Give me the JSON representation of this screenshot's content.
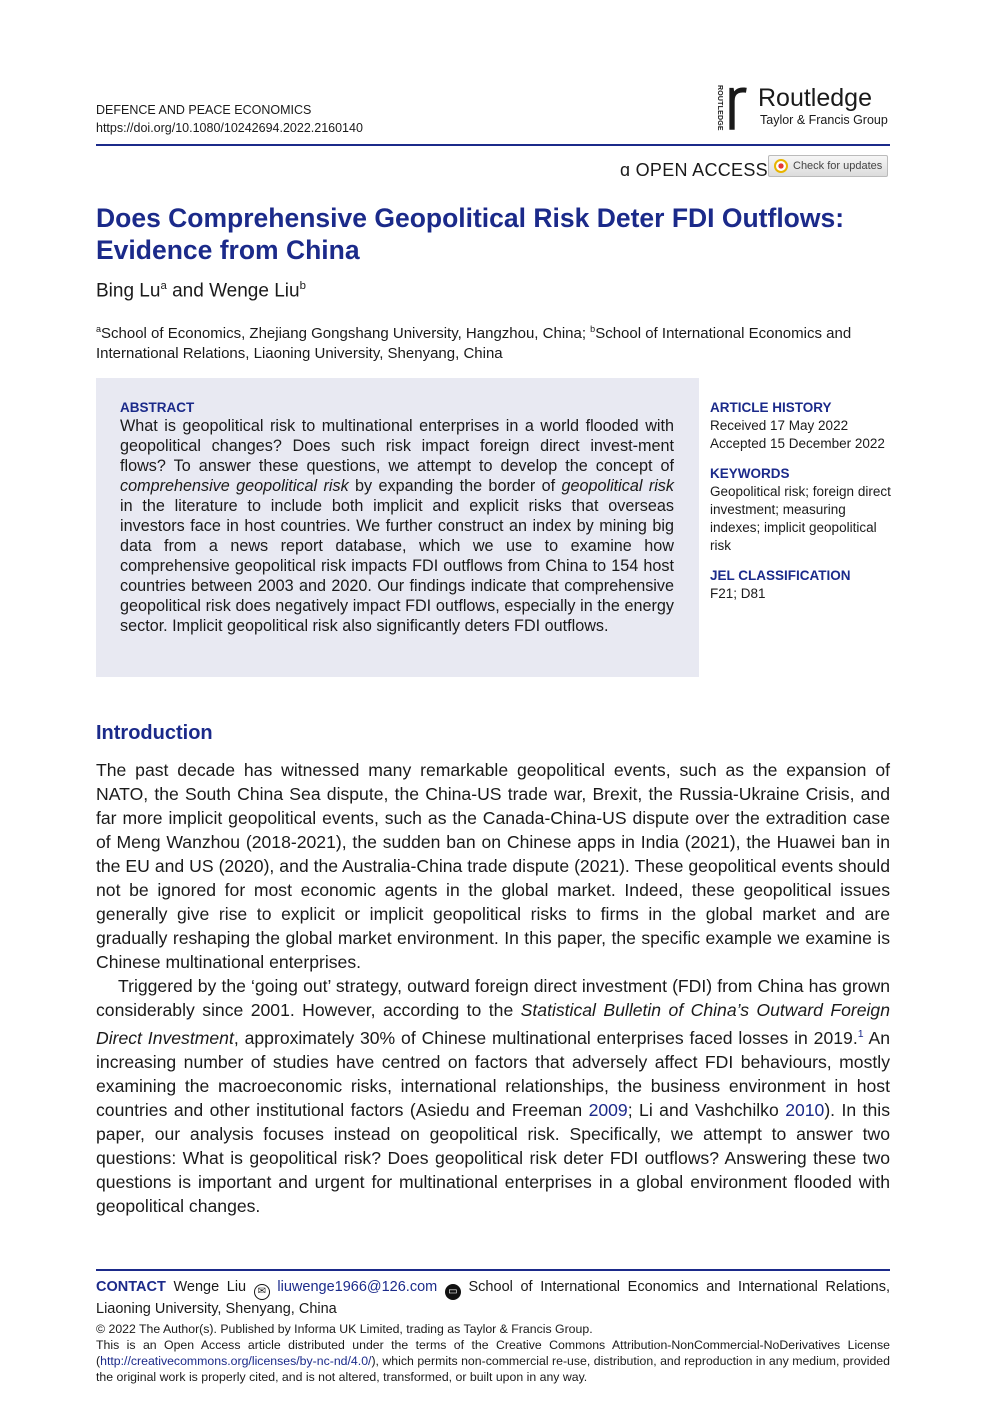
{
  "header": {
    "journal": "DEFENCE AND PEACE ECONOMICS",
    "doi": "https://doi.org/10.1080/10242694.2022.2160140",
    "publisher_logo_vertical": "ROUTLEDGE",
    "publisher_name": "Routledge",
    "publisher_group": "Taylor & Francis Group",
    "open_access": "OPEN ACCESS",
    "check_updates": "Check for updates"
  },
  "colors": {
    "accent": "#1b2a8a",
    "abstract_bg": "#e8e9f2"
  },
  "article": {
    "title": "Does Comprehensive Geopolitical Risk Deter FDI Outflows: Evidence from China",
    "author1": "Bing Lu",
    "author1_sup": "a",
    "and": " and ",
    "author2": "Wenge Liu",
    "author2_sup": "b",
    "affil_a_sup": "a",
    "affil_a": "School of Economics, Zhejiang Gongshang University, Hangzhou, China; ",
    "affil_b_sup": "b",
    "affil_b": "School of International Economics and International Relations, Liaoning University, Shenyang, China"
  },
  "abstract": {
    "heading": "ABSTRACT",
    "segments": [
      {
        "t": "What is geopolitical risk to multinational enterprises in a world flooded with geopolitical changes? Does such risk impact foreign direct invest-ment flows? To answer these questions, we attempt to develop the concept of "
      },
      {
        "t": "comprehensive geopolitical risk",
        "i": true
      },
      {
        "t": " by expanding the border of "
      },
      {
        "t": "geopolitical risk",
        "i": true
      },
      {
        "t": " in the literature to include both implicit and explicit risks that overseas investors face in host countries. We further construct an index by mining big data from a news report database, which we use to examine how comprehensive geopolitical risk impacts FDI outflows from China to 154 host countries between 2003 and 2020. Our findings indicate that comprehensive geopolitical risk does negatively impact FDI outflows, especially in the energy sector. Implicit geopolitical risk also significantly deters FDI outflows."
      }
    ]
  },
  "sidebar": {
    "history_heading": "ARTICLE HISTORY",
    "received": "Received 17 May 2022",
    "accepted": "Accepted 15 December 2022",
    "keywords_heading": "KEYWORDS",
    "keywords": "Geopolitical risk; foreign direct investment; measuring indexes; implicit geopolitical risk",
    "jel_heading": "JEL CLASSIFICATION",
    "jel": "F21; D81"
  },
  "introduction": {
    "heading": "Introduction",
    "paragraphs": [
      [
        {
          "t": "The past decade has witnessed many remarkable geopolitical events, such as the expansion of NATO, the South China Sea dispute, the China-US trade war, Brexit, the Russia-Ukraine Crisis, and far more implicit geopolitical events, such as the Canada-China-US dispute over the extradition case of Meng Wanzhou (2018-2021), the sudden ban on Chinese apps in India (2021), the Huawei ban in the EU and US (2020), and the Australia-China trade dispute (2021). These geopolitical events should not be ignored for most economic agents in the global market. Indeed, these geopolitical issues generally give rise to explicit or implicit geopolitical risks to firms in the global market and are gradually reshaping the global market environment. In this paper, the specific example we examine is Chinese multinational enterprises."
        }
      ],
      [
        {
          "t": "Triggered by the ‘going out’ strategy, outward foreign direct investment (FDI) from China has grown considerably since 2001. However, according to the "
        },
        {
          "t": "Statistical Bulletin of China’s Outward Foreign Direct Investment",
          "i": true
        },
        {
          "t": ", approximately 30% of Chinese multinational enterprises faced losses in 2019."
        },
        {
          "t": "1",
          "sup": true,
          "link": true
        },
        {
          "t": " An increasing number of studies have centred on factors that adversely affect FDI behaviours, mostly examining the macroeconomic risks, international relationships, the business environment in host countries and other institutional factors (Asiedu and Freeman "
        },
        {
          "t": "2009",
          "link": true
        },
        {
          "t": "; Li and Vashchilko "
        },
        {
          "t": "2010",
          "link": true
        },
        {
          "t": "). In this paper, our analysis focuses instead on geopolitical risk. Specifically, we attempt to answer two questions: What is geopolitical risk? Does geopolitical risk deter FDI outflows? Answering these two questions is important and urgent for multinational enterprises in a global environment flooded with geopolitical changes."
        }
      ]
    ]
  },
  "contact": {
    "label": "CONTACT",
    "name": " Wenge Liu ",
    "email": "liuwenge1966@126.com",
    "address": " School of International Economics and International Relations, Liaoning University, Shenyang, China"
  },
  "footer": {
    "copyright": "© 2022 The Author(s). Published by Informa UK Limited, trading as Taylor & Francis Group.",
    "license_pre": "This is an Open Access article distributed under the terms of the Creative Commons Attribution-NonCommercial-NoDerivatives License (",
    "license_url": "http://creativecommons.org/licenses/by-nc-nd/4.0/",
    "license_post": "), which permits non-commercial re-use, distribution, and reproduction in any medium, provided the original work is properly cited, and is not altered, transformed, or built upon in any way."
  }
}
